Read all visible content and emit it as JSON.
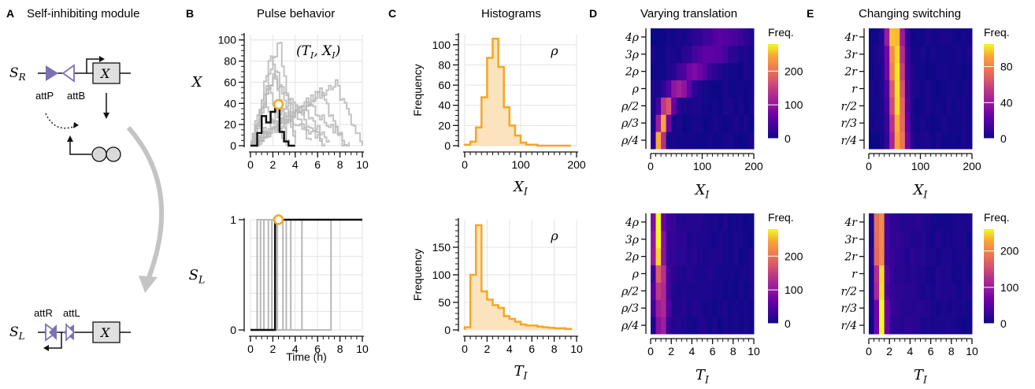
{
  "panels": {
    "A": {
      "letter": "A",
      "title": "Self-inhibiting module",
      "S_R": "S",
      "S_R_sub": "R",
      "S_L": "S",
      "S_L_sub": "L",
      "attP": "attP",
      "attB": "attB",
      "attR": "attR",
      "attL": "attL",
      "gene": "X"
    },
    "B": {
      "letter": "B",
      "title": "Pulse behavior"
    },
    "C": {
      "letter": "C",
      "title": "Histograms"
    },
    "D": {
      "letter": "D",
      "title": "Varying translation"
    },
    "E": {
      "letter": "E",
      "title": "Changing switching"
    }
  },
  "colors": {
    "orange": "#f5a623",
    "orange_fill": "#fbe3bd",
    "black": "#111111",
    "gray": "#b8b8b8",
    "grid": "#e3e3e3",
    "purple": "#7b72b4",
    "arrow_gray": "#c4c4c4"
  },
  "chart_data": [
    {
      "id": "B_top",
      "type": "line",
      "xlabel": "",
      "ylabel": "X",
      "annotation": "(T_I, X_I)",
      "xlim": [
        0,
        10
      ],
      "ylim": [
        0,
        105
      ],
      "xticks": [
        0,
        2,
        4,
        6,
        8,
        10
      ],
      "yticks": [
        0,
        20,
        40,
        60,
        80,
        100
      ],
      "highlight": {
        "x": [
          0,
          0.6,
          1.0,
          1.4,
          1.8,
          2.2,
          2.6,
          3.0,
          3.4,
          4.0
        ],
        "y": [
          0,
          12,
          28,
          22,
          32,
          35,
          13,
          4,
          0,
          0
        ]
      },
      "marker": {
        "x": 2.5,
        "y": 39
      }
    },
    {
      "id": "B_bottom",
      "type": "line",
      "xlabel": "Time (h)",
      "ylabel": "S_L",
      "xlim": [
        0,
        10
      ],
      "ylim": [
        0,
        1
      ],
      "xticks": [
        0,
        2,
        4,
        6,
        8,
        10
      ],
      "yticks": [
        0,
        1
      ],
      "highlight": {
        "x": [
          0,
          2.2,
          2.2,
          10
        ],
        "y": [
          0,
          0,
          1,
          1
        ]
      },
      "switch_times_gray": [
        0.6,
        0.9,
        1.2,
        1.6,
        1.9,
        2.4,
        2.9,
        3.2,
        3.6,
        4.6,
        7.2
      ],
      "marker": {
        "x": 2.5,
        "y": 1
      }
    },
    {
      "id": "C_top",
      "type": "histogram",
      "xlabel": "X_I",
      "ylabel": "Frequency",
      "annotation": "ρ",
      "xlim": [
        0,
        200
      ],
      "ylim": [
        0,
        110
      ],
      "xticks": [
        0,
        100,
        200
      ],
      "yticks": [
        0,
        20,
        40,
        60,
        80,
        100
      ],
      "bin_edges": [
        0,
        10,
        20,
        30,
        40,
        50,
        60,
        70,
        80,
        90,
        100,
        110,
        120,
        130,
        140,
        150,
        160,
        170,
        180,
        190
      ],
      "values": [
        1,
        4,
        18,
        48,
        87,
        106,
        78,
        38,
        20,
        10,
        3,
        1,
        1,
        0,
        0,
        0,
        0,
        0,
        0
      ]
    },
    {
      "id": "C_bottom",
      "type": "histogram",
      "xlabel": "T_I",
      "ylabel": "Frequency",
      "annotation": "ρ",
      "xlim": [
        0,
        10
      ],
      "ylim": [
        0,
        200
      ],
      "xticks": [
        0,
        2,
        4,
        6,
        8,
        10
      ],
      "yticks": [
        0,
        50,
        100,
        150
      ],
      "bin_edges": [
        0,
        0.5,
        1.0,
        1.5,
        2.0,
        2.5,
        3.0,
        3.5,
        4.0,
        4.5,
        5.0,
        5.5,
        6.0,
        6.5,
        7.0,
        7.5,
        8.0,
        8.5,
        9.0,
        9.5
      ],
      "values": [
        5,
        100,
        190,
        70,
        55,
        45,
        40,
        25,
        20,
        15,
        10,
        8,
        8,
        6,
        5,
        4,
        3,
        3,
        2
      ]
    },
    {
      "id": "D_top",
      "type": "heatmap",
      "xlabel": "X_I",
      "ylabel": "",
      "colorbar_label": "Freq.",
      "xlim": [
        0,
        200
      ],
      "xticks": [
        0,
        100,
        200
      ],
      "yticklabels": [
        "ρ/4",
        "ρ/3",
        "ρ/2",
        "ρ",
        "2ρ",
        "3ρ",
        "4ρ"
      ],
      "colorbar_ticks": [
        0,
        100,
        200
      ],
      "vmax": 280,
      "rows": [
        {
          "peak": 18,
          "width": 8,
          "amp": 280
        },
        {
          "peak": 24,
          "width": 10,
          "amp": 240
        },
        {
          "peak": 32,
          "width": 13,
          "amp": 180
        },
        {
          "peak": 55,
          "width": 22,
          "amp": 110
        },
        {
          "peak": 85,
          "width": 30,
          "amp": 75
        },
        {
          "peak": 115,
          "width": 38,
          "amp": 60
        },
        {
          "peak": 140,
          "width": 45,
          "amp": 50
        }
      ]
    },
    {
      "id": "E_top",
      "type": "heatmap",
      "xlabel": "X_I",
      "ylabel": "",
      "colorbar_label": "Freq.",
      "xlim": [
        0,
        200
      ],
      "xticks": [
        0,
        100,
        200
      ],
      "yticklabels": [
        "r/4",
        "r/3",
        "r/2",
        "r",
        "2r",
        "3r",
        "4r"
      ],
      "colorbar_ticks": [
        0,
        40,
        80
      ],
      "vmax": 105,
      "rows": [
        {
          "peak": 58,
          "width": 15,
          "amp": 95
        },
        {
          "peak": 57,
          "width": 15,
          "amp": 95
        },
        {
          "peak": 56,
          "width": 15,
          "amp": 98
        },
        {
          "peak": 55,
          "width": 15,
          "amp": 100
        },
        {
          "peak": 53,
          "width": 15,
          "amp": 102
        },
        {
          "peak": 52,
          "width": 15,
          "amp": 103
        },
        {
          "peak": 50,
          "width": 15,
          "amp": 105
        }
      ]
    },
    {
      "id": "D_bottom",
      "type": "heatmap",
      "xlabel": "T_I",
      "ylabel": "",
      "colorbar_label": "Freq.",
      "xlim": [
        0,
        10
      ],
      "xticks": [
        0,
        2,
        4,
        6,
        8,
        10
      ],
      "yticklabels": [
        "ρ/4",
        "ρ/3",
        "ρ/2",
        "ρ",
        "2ρ",
        "3ρ",
        "4ρ"
      ],
      "colorbar_ticks": [
        0,
        100,
        200
      ],
      "vmax": 280,
      "rows": [
        {
          "peak": 1.0,
          "width": 0.5,
          "amp": 120
        },
        {
          "peak": 1.0,
          "width": 0.6,
          "amp": 130
        },
        {
          "peak": 0.9,
          "width": 0.6,
          "amp": 150
        },
        {
          "peak": 0.9,
          "width": 0.5,
          "amp": 190
        },
        {
          "peak": 0.7,
          "width": 0.5,
          "amp": 230
        },
        {
          "peak": 0.7,
          "width": 0.45,
          "amp": 260
        },
        {
          "peak": 0.7,
          "width": 0.4,
          "amp": 280
        }
      ]
    },
    {
      "id": "E_bottom",
      "type": "heatmap",
      "xlabel": "T_I",
      "ylabel": "",
      "colorbar_label": "Freq.",
      "xlim": [
        0,
        10
      ],
      "xticks": [
        0,
        2,
        4,
        6,
        8,
        10
      ],
      "yticklabels": [
        "r/4",
        "r/3",
        "r/2",
        "r",
        "2r",
        "3r",
        "4r"
      ],
      "colorbar_ticks": [
        0,
        100,
        200
      ],
      "vmax": 260,
      "rows": [
        {
          "peak": 1.2,
          "width": 0.4,
          "amp": 240
        },
        {
          "peak": 1.2,
          "width": 0.4,
          "amp": 240
        },
        {
          "peak": 1.1,
          "width": 0.4,
          "amp": 245
        },
        {
          "peak": 1.1,
          "width": 0.4,
          "amp": 250
        },
        {
          "peak": 1.0,
          "width": 0.4,
          "amp": 250
        },
        {
          "peak": 1.0,
          "width": 0.4,
          "amp": 255
        },
        {
          "peak": 1.0,
          "width": 0.4,
          "amp": 260
        }
      ]
    }
  ]
}
